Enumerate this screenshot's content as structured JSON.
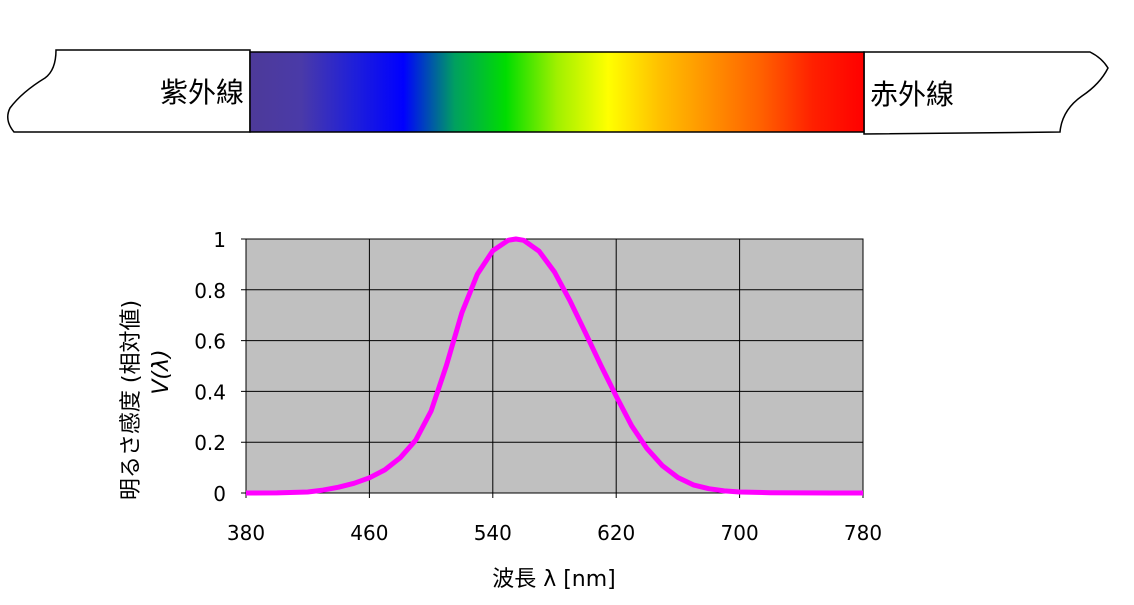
{
  "spectrum_band": {
    "left_label": "紫外線",
    "right_label": "赤外線",
    "gradient_colors": [
      "#4d3a99",
      "#4a3aa8",
      "#2020d8",
      "#0000ff",
      "#00a060",
      "#00dd00",
      "#a0f000",
      "#ffff00",
      "#ffc000",
      "#ff9000",
      "#ff6000",
      "#ff2000",
      "#ff0000"
    ]
  },
  "chart_data": {
    "type": "line",
    "xlabel": "波長 λ [nm]",
    "ylabel_line1": "明るさ感度 (相対値)",
    "ylabel_line2": "V(λ)",
    "xlim": [
      380,
      780
    ],
    "ylim": [
      0,
      1
    ],
    "x_ticks": [
      380,
      460,
      540,
      620,
      700,
      780
    ],
    "y_ticks": [
      "0",
      "0.2",
      "0.4",
      "0.6",
      "0.8",
      "1"
    ],
    "grid": true,
    "plot_background": "#c0c0c0",
    "line_color": "#ff00ff",
    "series": [
      {
        "x": [
          380,
          400,
          420,
          430,
          440,
          450,
          460,
          470,
          480,
          490,
          500,
          510,
          520,
          530,
          540,
          550,
          555,
          560,
          570,
          580,
          590,
          600,
          610,
          620,
          630,
          640,
          650,
          660,
          670,
          680,
          690,
          700,
          720,
          740,
          760,
          780
        ],
        "values": [
          0.0,
          0.0004,
          0.004,
          0.0116,
          0.023,
          0.038,
          0.06,
          0.091,
          0.139,
          0.208,
          0.323,
          0.503,
          0.71,
          0.862,
          0.954,
          0.995,
          1.0,
          0.995,
          0.952,
          0.87,
          0.757,
          0.631,
          0.503,
          0.381,
          0.265,
          0.175,
          0.107,
          0.061,
          0.032,
          0.017,
          0.0082,
          0.0041,
          0.001,
          0.0002,
          6e-05,
          0.0
        ]
      }
    ]
  }
}
